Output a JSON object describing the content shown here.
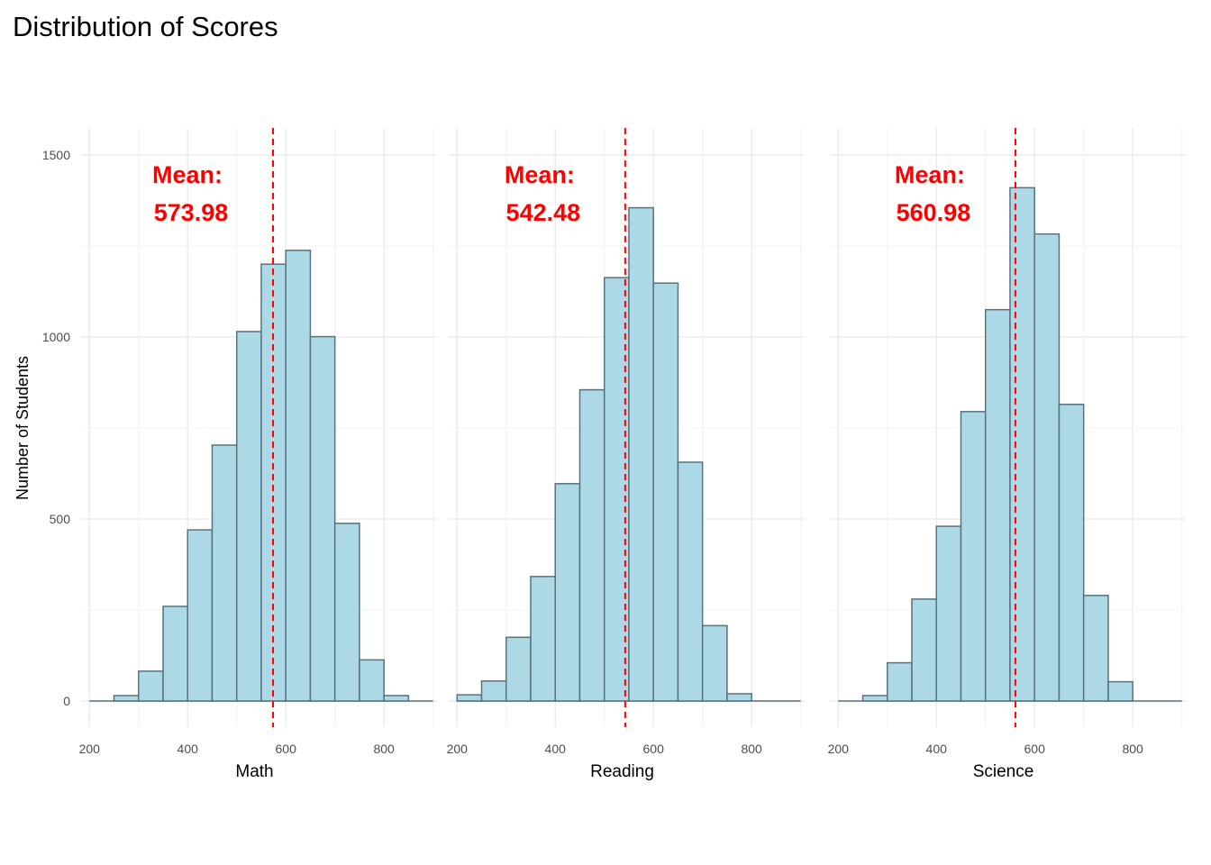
{
  "chart_data": {
    "type": "bar",
    "title": "Distribution of Scores",
    "ylabel": "Number of Students",
    "ylim": [
      -80,
      1575
    ],
    "xlim": [
      183,
      908
    ],
    "yticks": [
      0,
      500,
      1000,
      1500
    ],
    "xticks": [
      200,
      400,
      600,
      800
    ],
    "bin_width": 50,
    "bin_edges": [
      200,
      250,
      300,
      350,
      400,
      450,
      500,
      550,
      600,
      650,
      700,
      750,
      800,
      850,
      900
    ],
    "grid": true,
    "mean_label": "Mean:",
    "colors": {
      "bar_fill": "#add8e6",
      "bar_stroke": "#56737e",
      "mean_line": "#ff0000",
      "mean_text": "#ff0000",
      "grid_major": "#ebebeb",
      "grid_minor": "#f3f3f3"
    },
    "panels": [
      {
        "xlabel": "Math",
        "mean": 573.98,
        "mean_value_label": "573.98",
        "counts": [
          0,
          15,
          82,
          260,
          470,
          703,
          1015,
          1200,
          1238,
          1001,
          488,
          113,
          15,
          0
        ]
      },
      {
        "xlabel": "Reading",
        "mean": 542.48,
        "mean_value_label": "542.48",
        "counts": [
          17,
          55,
          175,
          342,
          597,
          855,
          1163,
          1355,
          1148,
          656,
          207,
          20,
          0,
          0
        ]
      },
      {
        "xlabel": "Science",
        "mean": 560.98,
        "mean_value_label": "560.98",
        "counts": [
          0,
          15,
          105,
          280,
          480,
          795,
          1075,
          1410,
          1283,
          815,
          290,
          53,
          0,
          0
        ]
      }
    ]
  }
}
